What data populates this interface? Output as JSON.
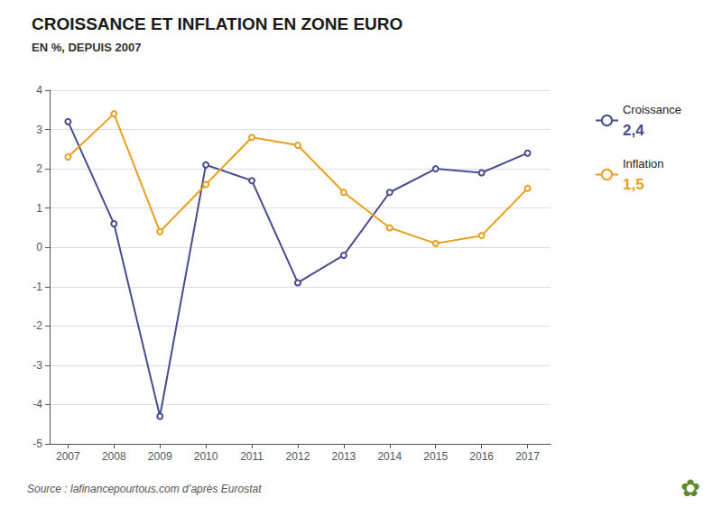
{
  "chart_data": {
    "type": "line",
    "title": "CROISSANCE ET INFLATION EN ZONE EURO",
    "subtitle": "EN %, DEPUIS 2007",
    "source": "Source : lafinancepourtous.com d’après Eurostat",
    "x": [
      2007,
      2008,
      2009,
      2010,
      2011,
      2012,
      2013,
      2014,
      2015,
      2016,
      2017
    ],
    "series": [
      {
        "name": "Croissance",
        "color": "#4B4C8E",
        "values": [
          3.2,
          0.6,
          -4.3,
          2.1,
          1.7,
          -0.9,
          -0.2,
          1.4,
          2.0,
          1.9,
          2.4
        ]
      },
      {
        "name": "Inflation",
        "color": "#E8A020",
        "values": [
          2.3,
          3.4,
          0.4,
          1.6,
          2.8,
          2.6,
          1.4,
          0.5,
          0.1,
          0.3,
          1.5
        ]
      }
    ],
    "xlim": [
      2006.6,
      2017.5
    ],
    "xticks": [
      2007,
      2008,
      2009,
      2010,
      2011,
      2012,
      2013,
      2014,
      2015,
      2016,
      2017
    ],
    "ylim": [
      -5,
      4
    ],
    "yticks": [
      -5,
      -4,
      -3,
      -2,
      -1,
      0,
      1,
      2,
      3,
      4
    ],
    "grid": true,
    "legend": "right",
    "annotations": [
      {
        "text": "2,4",
        "series": "Croissance"
      },
      {
        "text": "1,5",
        "series": "Inflation"
      },
      {
        "text": "✿",
        "color": "#5a8a2a"
      }
    ]
  }
}
